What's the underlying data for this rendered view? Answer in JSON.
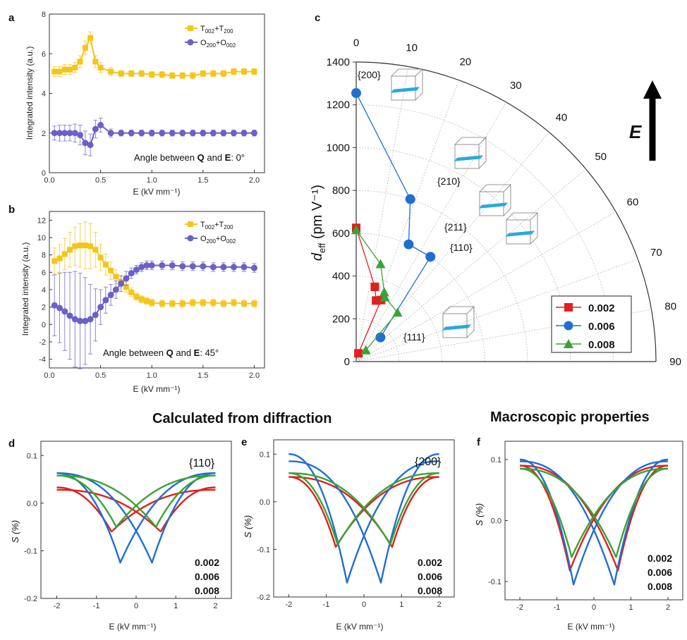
{
  "section_titles": {
    "diffraction": "Calculated from diffraction",
    "macro": "Macroscopic properties"
  },
  "chart_data": [
    {
      "panel": "a",
      "type": "line",
      "xlabel": "E (kV mm⁻¹)",
      "ylabel": "Integrated intensity (a.u.)",
      "xlim": [
        0,
        2.1
      ],
      "ylim": [
        0,
        8
      ],
      "xticks": [
        "0.0",
        "0.5",
        "1.0",
        "1.5",
        "2.0"
      ],
      "yticks": [
        "0",
        "2",
        "4",
        "6",
        "8"
      ],
      "annotation": {
        "pre": "Angle between ",
        "q": "Q",
        "mid": " and ",
        "e": "E",
        "post": ": 0°"
      },
      "legend": {
        "t_base": "T",
        "t_s1": "002",
        "t_plus": "+T",
        "t_s2": "200",
        "o_base": "O",
        "o_s1": "200",
        "o_plus": "+O",
        "o_s2": "002"
      },
      "series": [
        {
          "name": "T002+T200",
          "color": "#f5c518",
          "x": [
            0.05,
            0.1,
            0.15,
            0.2,
            0.25,
            0.3,
            0.35,
            0.4,
            0.45,
            0.5,
            0.6,
            0.7,
            0.8,
            0.9,
            1.0,
            1.1,
            1.2,
            1.3,
            1.4,
            1.5,
            1.6,
            1.7,
            1.8,
            1.9,
            2.0
          ],
          "y": [
            5.1,
            5.1,
            5.2,
            5.2,
            5.3,
            5.6,
            6.3,
            6.8,
            5.6,
            5.3,
            5.1,
            5.0,
            5.0,
            5.0,
            4.95,
            4.95,
            4.9,
            4.9,
            4.9,
            5.0,
            5.0,
            5.0,
            5.1,
            5.1,
            5.1
          ],
          "err": [
            0.25,
            0.25,
            0.25,
            0.25,
            0.25,
            0.3,
            0.35,
            0.3,
            0.3,
            0.25,
            0.2,
            0.15,
            0.15,
            0.15,
            0.15,
            0.15,
            0.15,
            0.15,
            0.15,
            0.15,
            0.15,
            0.15,
            0.15,
            0.15,
            0.15
          ]
        },
        {
          "name": "O200+O002",
          "color": "#6b60c8",
          "x": [
            0.05,
            0.1,
            0.15,
            0.2,
            0.25,
            0.3,
            0.35,
            0.4,
            0.45,
            0.5,
            0.6,
            0.7,
            0.8,
            0.9,
            1.0,
            1.1,
            1.2,
            1.3,
            1.4,
            1.5,
            1.6,
            1.7,
            1.8,
            1.9,
            2.0
          ],
          "y": [
            2.0,
            2.0,
            2.0,
            2.0,
            2.0,
            1.9,
            1.5,
            1.4,
            2.2,
            2.4,
            2.0,
            2.0,
            2.0,
            2.0,
            2.0,
            2.0,
            2.0,
            2.0,
            2.0,
            2.0,
            2.0,
            2.0,
            2.0,
            2.0,
            2.0
          ],
          "err": [
            0.35,
            0.4,
            0.4,
            0.4,
            0.45,
            0.5,
            0.6,
            0.55,
            0.45,
            0.35,
            0.2,
            0.15,
            0.15,
            0.15,
            0.15,
            0.15,
            0.15,
            0.15,
            0.15,
            0.15,
            0.15,
            0.15,
            0.15,
            0.15,
            0.15
          ]
        }
      ]
    },
    {
      "panel": "b",
      "type": "line",
      "xlabel": "E (kV mm⁻¹)",
      "ylabel": "Integrated intensity (a.u.)",
      "xlim": [
        0,
        2.1
      ],
      "ylim": [
        -5,
        13
      ],
      "xticks": [
        "0.0",
        "0.5",
        "1.0",
        "1.5",
        "2.0"
      ],
      "yticks": [
        "-4",
        "-2",
        "0",
        "2",
        "4",
        "6",
        "8",
        "10",
        "12"
      ],
      "annotation": {
        "pre": "Angle between ",
        "q": "Q",
        "mid": " and ",
        "e": "E",
        "post": ": 45°"
      },
      "legend": {
        "t_base": "T",
        "t_s1": "002",
        "t_plus": "+T",
        "t_s2": "200",
        "o_base": "O",
        "o_s1": "200",
        "o_plus": "+O",
        "o_s2": "002"
      },
      "series": [
        {
          "name": "T002+T200",
          "color": "#f5c518",
          "x": [
            0.05,
            0.1,
            0.15,
            0.2,
            0.25,
            0.3,
            0.35,
            0.4,
            0.45,
            0.5,
            0.55,
            0.6,
            0.65,
            0.7,
            0.75,
            0.8,
            0.85,
            0.9,
            0.95,
            1.0,
            1.1,
            1.2,
            1.3,
            1.4,
            1.5,
            1.6,
            1.7,
            1.8,
            1.9,
            2.0
          ],
          "y": [
            7.3,
            7.6,
            8.1,
            8.6,
            9.0,
            9.1,
            9.1,
            9.0,
            8.6,
            7.7,
            6.9,
            6.2,
            5.5,
            4.9,
            4.3,
            3.7,
            3.2,
            2.9,
            2.7,
            2.5,
            2.4,
            2.4,
            2.4,
            2.5,
            2.5,
            2.5,
            2.4,
            2.5,
            2.4,
            2.4
          ],
          "err": [
            1.5,
            1.6,
            1.8,
            2.0,
            2.2,
            2.5,
            2.7,
            2.6,
            2.0,
            1.5,
            1.2,
            1.0,
            0.8,
            0.7,
            0.6,
            0.5,
            0.4,
            0.4,
            0.4,
            0.4,
            0.4,
            0.4,
            0.4,
            0.4,
            0.4,
            0.4,
            0.4,
            0.4,
            0.4,
            0.4
          ]
        },
        {
          "name": "O200+O002",
          "color": "#6b60c8",
          "x": [
            0.05,
            0.1,
            0.15,
            0.2,
            0.25,
            0.3,
            0.35,
            0.4,
            0.45,
            0.5,
            0.55,
            0.6,
            0.65,
            0.7,
            0.75,
            0.8,
            0.85,
            0.9,
            0.95,
            1.0,
            1.1,
            1.2,
            1.3,
            1.4,
            1.5,
            1.6,
            1.7,
            1.8,
            1.9,
            2.0
          ],
          "y": [
            2.2,
            1.9,
            1.5,
            1.0,
            0.6,
            0.4,
            0.4,
            0.6,
            1.1,
            2.0,
            2.8,
            3.4,
            4.0,
            4.7,
            5.3,
            5.9,
            6.3,
            6.6,
            6.8,
            6.8,
            6.8,
            6.8,
            6.7,
            6.7,
            6.7,
            6.6,
            6.6,
            6.6,
            6.6,
            6.5
          ],
          "err": [
            3.5,
            4.0,
            4.5,
            5.0,
            5.5,
            5.5,
            5.0,
            4.0,
            3.0,
            2.0,
            1.5,
            1.2,
            1.0,
            0.9,
            0.8,
            0.6,
            0.5,
            0.5,
            0.5,
            0.5,
            0.5,
            0.5,
            0.5,
            0.5,
            0.5,
            0.5,
            0.5,
            0.5,
            0.5,
            0.5
          ]
        }
      ]
    },
    {
      "panel": "c",
      "type": "scatter",
      "subtype": "polar-quadrant",
      "ylabel_main": "d",
      "ylabel_sub": "eff",
      "ylabel_rest": " (pm V⁻¹)",
      "rlim": [
        0,
        1400
      ],
      "rticks": [
        "0",
        "200",
        "400",
        "600",
        "800",
        "1000",
        "1200",
        "1400"
      ],
      "angle_ticks": [
        "0",
        "10",
        "20",
        "30",
        "40",
        "50",
        "60",
        "70",
        "80",
        "90"
      ],
      "field_label": "E",
      "miller_labels": [
        "{200}",
        "{210}",
        "{211}",
        "{110}",
        "{111}"
      ],
      "series": [
        {
          "name": "0.002",
          "color": "#e0201e",
          "marker": "square",
          "angle_deg": [
            0,
            14,
            18,
            22,
            15
          ],
          "r": [
            625,
            360,
            300,
            310,
            40
          ]
        },
        {
          "name": "0.006",
          "color": "#1f6fd1",
          "marker": "circle",
          "angle_deg": [
            0,
            18.4,
            24.1,
            35.3,
            45
          ],
          "r": [
            1255,
            800,
            600,
            600,
            160
          ]
        },
        {
          "name": "0.008",
          "color": "#3aa335",
          "marker": "triangle",
          "angle_deg": [
            0,
            14,
            22,
            24,
            40,
            40
          ],
          "r": [
            615,
            470,
            350,
            330,
            300,
            70
          ]
        }
      ]
    },
    {
      "panel": "d",
      "type": "line",
      "xlabel": "E (kV mm⁻¹)",
      "ylabel": "S (%)",
      "xlim": [
        -2.4,
        2.4
      ],
      "ylim": [
        -0.2,
        0.13
      ],
      "xticks": [
        "-2",
        "-1",
        "0",
        "1",
        "2"
      ],
      "yticks": [
        "-0.2",
        "-0.1",
        "0.0",
        "0.1"
      ],
      "label": "{110}",
      "legend": [
        "0.002",
        "0.006",
        "0.008"
      ],
      "series": [
        {
          "name": "0.002",
          "color": "#e0201e",
          "up": 0.033,
          "um": 0.028,
          "dip": -0.06,
          "ec": 0.62
        },
        {
          "name": "0.006",
          "color": "#1f6fd1",
          "up": 0.063,
          "um": 0.063,
          "dip": -0.125,
          "ec": 0.4
        },
        {
          "name": "0.008",
          "color": "#3aa335",
          "up": 0.058,
          "um": 0.058,
          "dip": -0.05,
          "ec": 0.5
        }
      ]
    },
    {
      "panel": "e",
      "type": "line",
      "xlabel": "E (kV mm⁻¹)",
      "ylabel": "S (%)",
      "xlim": [
        -2.4,
        2.4
      ],
      "ylim": [
        -0.2,
        0.13
      ],
      "xticks": [
        "-2",
        "-1",
        "0",
        "1",
        "2"
      ],
      "yticks": [
        "-0.2",
        "-0.1",
        "0.0",
        "0.1"
      ],
      "label": "{200}",
      "legend": [
        "0.002",
        "0.006",
        "0.008"
      ],
      "series": [
        {
          "name": "0.002",
          "color": "#e0201e",
          "up": 0.052,
          "um": 0.052,
          "dip": -0.095,
          "ec": 0.75
        },
        {
          "name": "0.006",
          "color": "#1f6fd1",
          "up": 0.1,
          "um": 0.085,
          "dip": -0.17,
          "ec": 0.45
        },
        {
          "name": "0.008",
          "color": "#3aa335",
          "up": 0.06,
          "um": 0.06,
          "dip": -0.09,
          "ec": 0.7
        }
      ]
    },
    {
      "panel": "f",
      "type": "line",
      "xlabel": "E (kV mm⁻¹)",
      "ylabel": "S (%)",
      "xlim": [
        -2.4,
        2.4
      ],
      "ylim": [
        -0.13,
        0.13
      ],
      "xticks": [
        "-2",
        "-1",
        "0",
        "1",
        "2"
      ],
      "yticks": [
        "-0.1",
        "0.0",
        "0.1"
      ],
      "label": "",
      "legend": [
        "0.002",
        "0.006",
        "0.008"
      ],
      "series": [
        {
          "name": "0.002",
          "color": "#e0201e",
          "up": 0.09,
          "um": 0.09,
          "dip": -0.082,
          "ec": 0.65
        },
        {
          "name": "0.006",
          "color": "#1f6fd1",
          "up": 0.1,
          "um": 0.097,
          "dip": -0.105,
          "ec": 0.55
        },
        {
          "name": "0.008",
          "color": "#3aa335",
          "up": 0.085,
          "um": 0.085,
          "dip": -0.06,
          "ec": 0.6
        }
      ]
    }
  ]
}
